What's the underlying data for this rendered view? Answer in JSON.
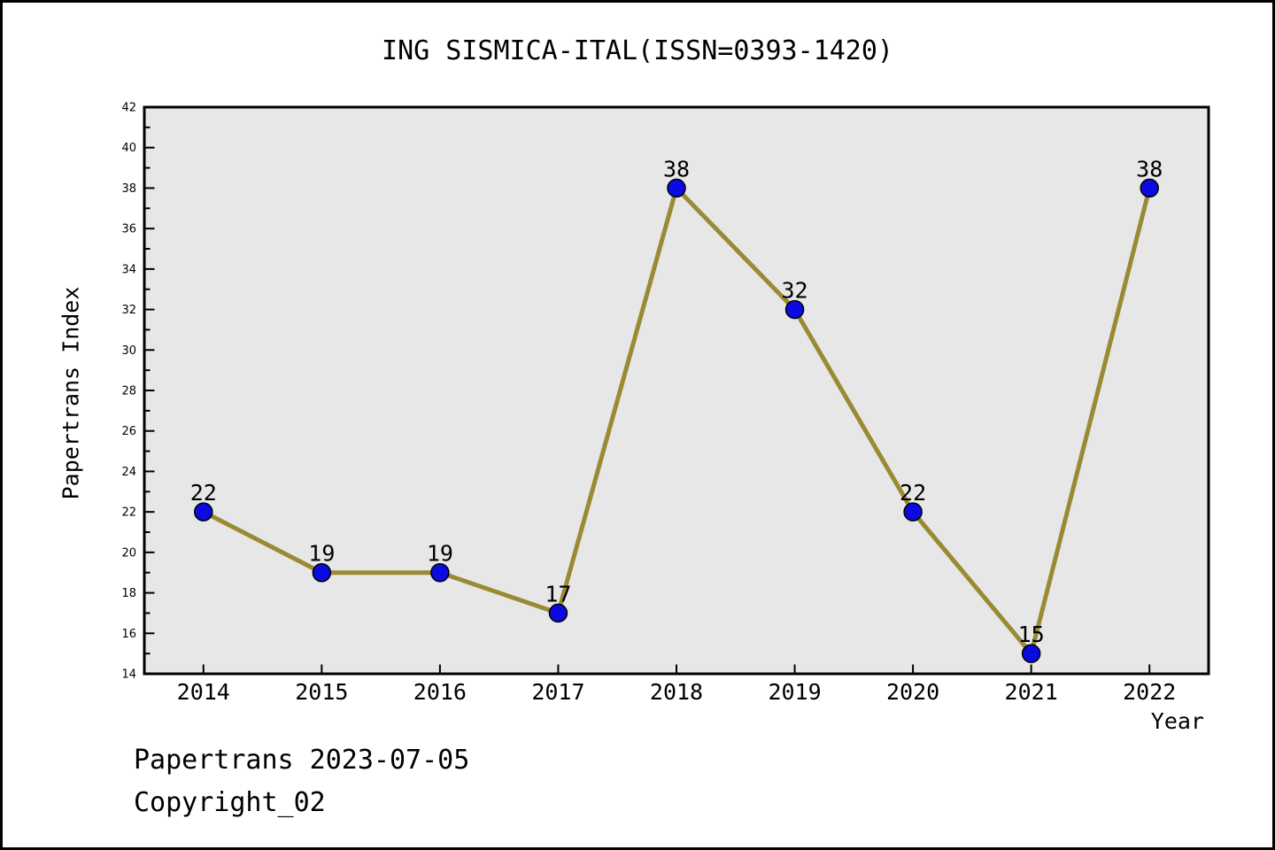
{
  "title": "ING SISMICA-ITAL(ISSN=0393-1420)",
  "footer": {
    "line1": "Papertrans 2023-07-05",
    "line2": "Copyright_02"
  },
  "chart_data": {
    "type": "line",
    "title": "ING SISMICA-ITAL(ISSN=0393-1420)",
    "xlabel": "Year",
    "ylabel": "Papertrans Index",
    "categories": [
      "2014",
      "2015",
      "2016",
      "2017",
      "2018",
      "2019",
      "2020",
      "2021",
      "2022"
    ],
    "series": [
      {
        "name": "Papertrans Index",
        "values": [
          22,
          19,
          19,
          17,
          38,
          32,
          22,
          15,
          38
        ]
      }
    ],
    "ylim": [
      14,
      42
    ],
    "ytick_step": 2,
    "yminor_step": 1,
    "grid": false,
    "point_labels": true,
    "legend": "none",
    "colors": {
      "line": "#998a33",
      "marker": "#0b0be1",
      "marker_edge": "#000000",
      "plot_bg": "#e7e7e7",
      "frame": "#000000",
      "text": "#000000",
      "page_bg": "#ffffff"
    }
  }
}
